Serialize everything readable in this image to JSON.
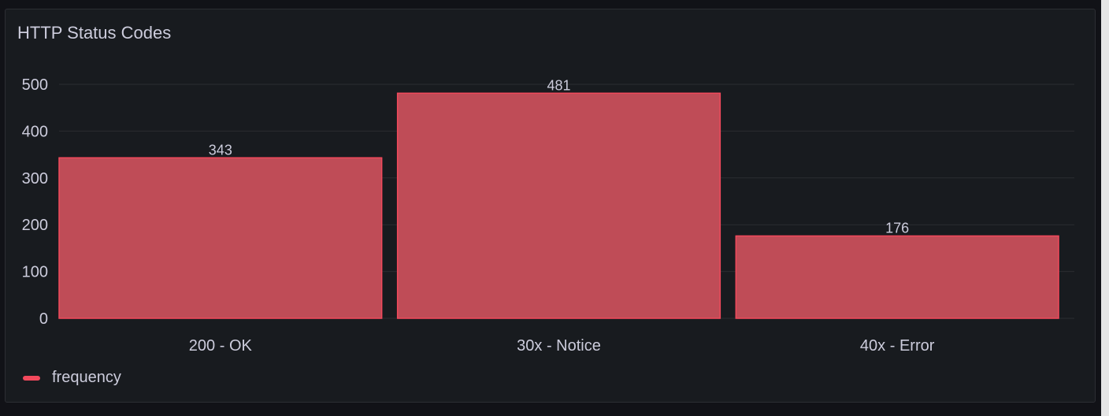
{
  "panel": {
    "title": "HTTP Status Codes"
  },
  "colors": {
    "bar_fill": "#bf4c57",
    "bar_stroke": "#f2495c",
    "grid": "#2a2c31",
    "legend": "#f2495c"
  },
  "chart_data": {
    "type": "bar",
    "title": "HTTP Status Codes",
    "categories": [
      "200 - OK",
      "30x - Notice",
      "40x - Error"
    ],
    "series": [
      {
        "name": "frequency",
        "values": [
          343,
          481,
          176
        ]
      }
    ],
    "ylim": [
      0,
      500
    ],
    "yticks": [
      0,
      100,
      200,
      300,
      400,
      500
    ],
    "grid": true,
    "legend_placement": "bottom-left",
    "xlabel": "",
    "ylabel": ""
  }
}
